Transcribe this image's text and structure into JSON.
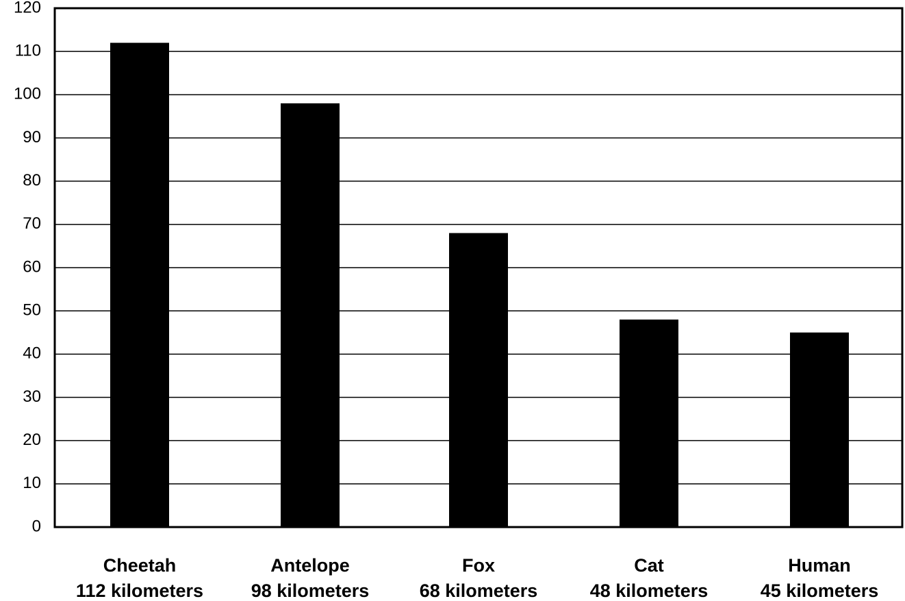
{
  "chart_data": {
    "type": "bar",
    "categories": [
      "Cheetah",
      "Antelope",
      "Fox",
      "Cat",
      "Human"
    ],
    "value_labels": [
      "112 kilometers",
      "98 kilometers",
      "68 kilometers",
      "48 kilometers",
      "45 kilometers"
    ],
    "values": [
      112,
      98,
      68,
      48,
      45
    ],
    "ylim": [
      0,
      120
    ],
    "yticks": [
      0,
      10,
      20,
      30,
      40,
      50,
      60,
      70,
      80,
      90,
      100,
      110,
      120
    ],
    "grid": true,
    "colors": {
      "bar": "#000000",
      "grid": "#000000",
      "background": "#ffffff"
    }
  }
}
